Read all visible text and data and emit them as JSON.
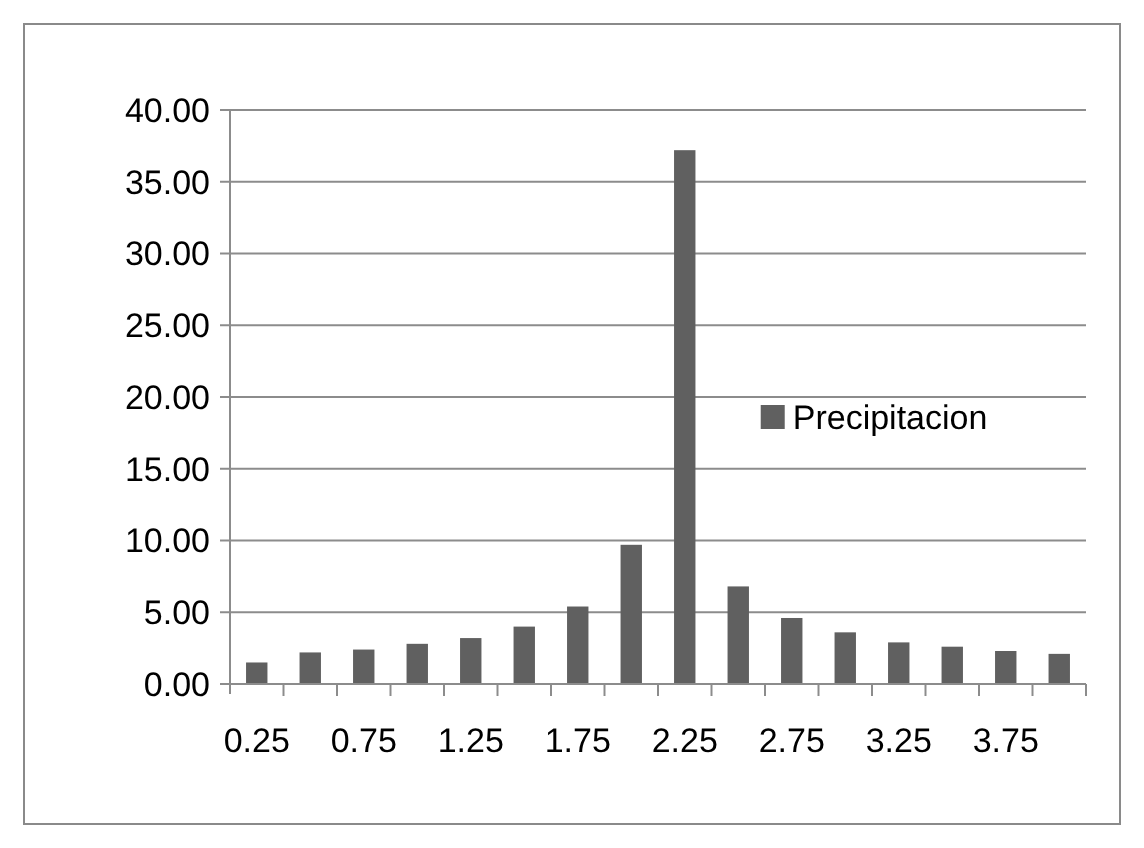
{
  "chart_data": {
    "type": "bar",
    "categories": [
      "0.25",
      null,
      "0.75",
      null,
      "1.25",
      null,
      "1.75",
      null,
      "2.25",
      null,
      "2.75",
      null,
      "3.25",
      null,
      "3.75",
      null
    ],
    "series": [
      {
        "name": "Precipitacion",
        "color": "#606060",
        "values": [
          1.5,
          2.2,
          2.4,
          2.8,
          3.2,
          4.0,
          5.4,
          9.7,
          37.2,
          6.8,
          4.6,
          3.6,
          2.9,
          2.6,
          2.3,
          2.1
        ]
      }
    ],
    "ylim": [
      0,
      40
    ],
    "yticks": [
      {
        "value": 0,
        "label": "0.00"
      },
      {
        "value": 5,
        "label": "5.00"
      },
      {
        "value": 10,
        "label": "10.00"
      },
      {
        "value": 15,
        "label": "15.00"
      },
      {
        "value": 20,
        "label": "20.00"
      },
      {
        "value": 25,
        "label": "25.00"
      },
      {
        "value": 30,
        "label": "30.00"
      },
      {
        "value": 35,
        "label": "35.00"
      },
      {
        "value": 40,
        "label": "40.00"
      }
    ],
    "grid": "y",
    "legend": "right"
  }
}
